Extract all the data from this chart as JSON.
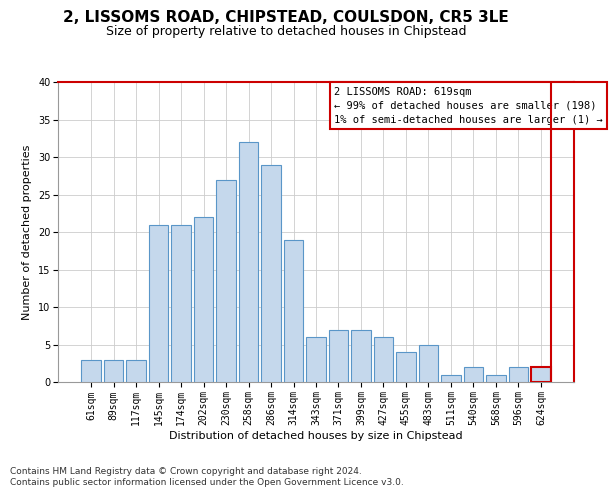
{
  "title": "2, LISSOMS ROAD, CHIPSTEAD, COULSDON, CR5 3LE",
  "subtitle": "Size of property relative to detached houses in Chipstead",
  "xlabel": "Distribution of detached houses by size in Chipstead",
  "ylabel": "Number of detached properties",
  "categories": [
    "61sqm",
    "89sqm",
    "117sqm",
    "145sqm",
    "174sqm",
    "202sqm",
    "230sqm",
    "258sqm",
    "286sqm",
    "314sqm",
    "343sqm",
    "371sqm",
    "399sqm",
    "427sqm",
    "455sqm",
    "483sqm",
    "511sqm",
    "540sqm",
    "568sqm",
    "596sqm",
    "624sqm"
  ],
  "values": [
    3,
    3,
    3,
    21,
    21,
    22,
    27,
    32,
    29,
    19,
    6,
    7,
    7,
    6,
    4,
    5,
    1,
    2,
    1,
    2,
    2
  ],
  "bar_color": "#c5d8ec",
  "bar_edge_color": "#5a96c8",
  "highlight_edge_color": "#cc0000",
  "vline_color": "#cc0000",
  "annotation_title": "2 LISSOMS ROAD: 619sqm",
  "annotation_line1": "← 99% of detached houses are smaller (198)",
  "annotation_line2": "1% of semi-detached houses are larger (1) →",
  "annotation_box_edgecolor": "#cc0000",
  "ylim": [
    0,
    40
  ],
  "yticks": [
    0,
    5,
    10,
    15,
    20,
    25,
    30,
    35,
    40
  ],
  "title_fontsize": 11,
  "subtitle_fontsize": 9,
  "axis_label_fontsize": 8,
  "tick_fontsize": 7,
  "annotation_fontsize": 7.5,
  "footer_fontsize": 6.5,
  "background_color": "#ffffff",
  "footer_line1": "Contains HM Land Registry data © Crown copyright and database right 2024.",
  "footer_line2": "Contains public sector information licensed under the Open Government Licence v3.0."
}
